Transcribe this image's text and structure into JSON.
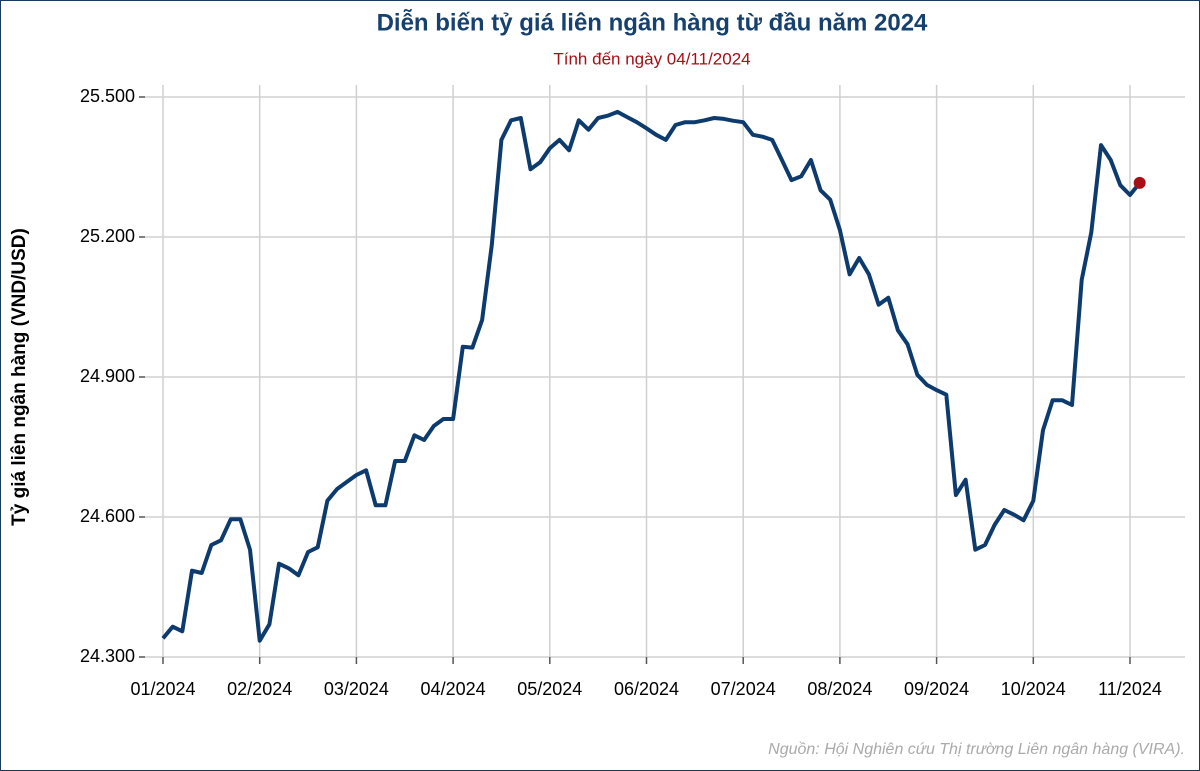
{
  "chart_data": {
    "type": "line",
    "title": "Diễn biến tỷ giá liên ngân hàng từ đầu năm 2024",
    "subtitle": "Tính đến ngày 04/11/2024",
    "y_label": "Tỷ giá liên ngân hàng (VND/USD)",
    "source": "Nguồn: Hội Nghiên cứu Thị trường Liên ngân hàng (VIRA).",
    "categories": [
      "01/2024",
      null,
      null,
      null,
      null,
      null,
      null,
      null,
      null,
      null,
      "02/2024",
      null,
      null,
      null,
      null,
      null,
      null,
      null,
      null,
      null,
      "03/2024",
      null,
      null,
      null,
      null,
      null,
      null,
      null,
      null,
      null,
      "04/2024",
      null,
      null,
      null,
      null,
      null,
      null,
      null,
      null,
      null,
      "05/2024",
      null,
      null,
      null,
      null,
      null,
      null,
      null,
      null,
      null,
      "06/2024",
      null,
      null,
      null,
      null,
      null,
      null,
      null,
      null,
      null,
      "07/2024",
      null,
      null,
      null,
      null,
      null,
      null,
      null,
      null,
      null,
      "08/2024",
      null,
      null,
      null,
      null,
      null,
      null,
      null,
      null,
      null,
      "09/2024",
      null,
      null,
      null,
      null,
      null,
      null,
      null,
      null,
      null,
      "10/2024",
      null,
      null,
      null,
      null,
      null,
      null,
      null,
      null,
      null,
      "11/2024",
      null
    ],
    "series": [
      {
        "color": "#0d3b6e",
        "values": [
          24340,
          24365,
          24355,
          24485,
          24480,
          24540,
          24550,
          24595,
          24595,
          24530,
          24335,
          24370,
          24500,
          24490,
          24475,
          24525,
          24535,
          24635,
          24660,
          24675,
          24690,
          24700,
          24625,
          24625,
          24720,
          24720,
          24775,
          24765,
          24795,
          24810,
          24810,
          24965,
          24963,
          25022,
          25183,
          25408,
          25450,
          25455,
          25345,
          25360,
          25390,
          25408,
          25386,
          25450,
          25430,
          25455,
          25460,
          25468,
          25457,
          25446,
          25433,
          25419,
          25408,
          25440,
          25446,
          25446,
          25450,
          25455,
          25453,
          25449,
          25446,
          25419,
          25415,
          25408,
          25365,
          25322,
          25330,
          25365,
          25300,
          25280,
          25215,
          25120,
          25155,
          25120,
          25055,
          25070,
          25000,
          24970,
          24905,
          24883,
          24872,
          24862,
          24647,
          24680,
          24530,
          24540,
          24583,
          24615,
          24605,
          24593,
          24635,
          24786,
          24850,
          24850,
          24840,
          25108,
          25210,
          25397,
          25365,
          25311,
          25290,
          25316
        ]
      }
    ],
    "last_point_color": "#a50f15",
    "ylim": [
      24300,
      25500
    ],
    "yticks": [
      {
        "value": 24300,
        "label": "24.300"
      },
      {
        "value": 24600,
        "label": "24.600"
      },
      {
        "value": 24900,
        "label": "24.900"
      },
      {
        "value": 25200,
        "label": "25.200"
      },
      {
        "value": 25500,
        "label": "25.500"
      }
    ],
    "grid": true
  }
}
